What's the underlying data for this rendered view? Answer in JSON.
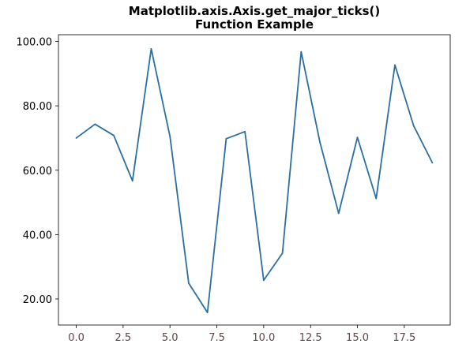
{
  "chart_data": {
    "type": "line",
    "title_lines": [
      "Matplotlib.axis.Axis.get_major_ticks()",
      "Function Example"
    ],
    "xlabel": "",
    "ylabel": "",
    "xlim": [
      -0.95,
      19.95
    ],
    "ylim": [
      11.9,
      102.1
    ],
    "x_ticks": [
      0,
      2.5,
      5,
      7.5,
      10,
      12.5,
      15,
      17.5
    ],
    "x_tick_labels": [
      "0.0",
      "2.5",
      "5.0",
      "7.5",
      "10.0",
      "12.5",
      "15.0",
      "17.5"
    ],
    "y_ticks": [
      20,
      40,
      60,
      80,
      100
    ],
    "y_tick_labels": [
      "20.00",
      "40.00",
      "60.00",
      "80.00",
      "100.00"
    ],
    "grid": false,
    "series": [
      {
        "x": [
          0,
          1,
          2,
          3,
          4,
          5,
          6,
          7,
          8,
          9,
          10,
          11,
          12,
          13,
          14,
          15,
          16,
          17,
          18,
          19
        ],
        "y": [
          70.0,
          74.3,
          70.8,
          56.7,
          97.7,
          70.5,
          24.9,
          15.8,
          69.8,
          72.0,
          25.8,
          34.2,
          96.8,
          68.7,
          46.6,
          70.2,
          51.2,
          92.7,
          73.8,
          62.3
        ],
        "color": "#2b6fa0"
      }
    ],
    "x_tick_label_color": "#5c4848",
    "y_tick_label_color": "#000000"
  }
}
